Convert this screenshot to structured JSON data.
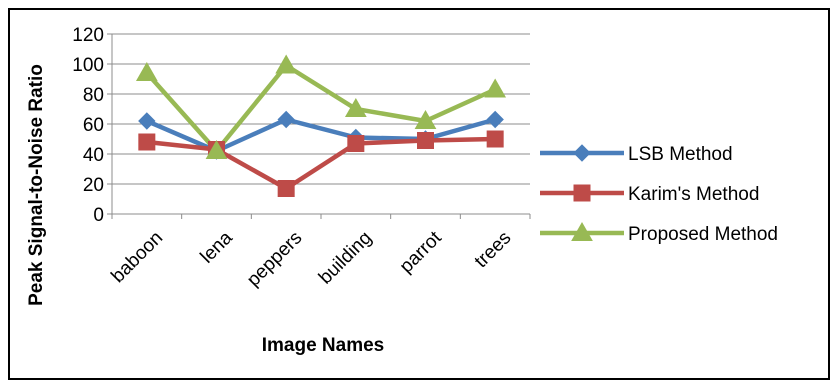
{
  "chart_data": {
    "type": "line",
    "categories": [
      "baboon",
      "lena",
      "peppers",
      "building",
      "parrot",
      "trees"
    ],
    "series": [
      {
        "name": "LSB Method",
        "values": [
          62,
          42,
          63,
          51,
          50,
          63
        ],
        "color": "#4a7ebb",
        "marker": "diamond"
      },
      {
        "name": "Karim's Method",
        "values": [
          48,
          43,
          17,
          47,
          49,
          50
        ],
        "color": "#be4b48",
        "marker": "square"
      },
      {
        "name": "Proposed Method",
        "values": [
          94,
          42,
          99,
          70,
          62,
          83
        ],
        "color": "#98b954",
        "marker": "triangle"
      }
    ],
    "title": "",
    "xlabel": "Image Names",
    "ylabel": "Peak Signal-to-Noise Ratio",
    "ylim": [
      0,
      120
    ],
    "yticks": [
      "0",
      "20",
      "40",
      "60",
      "80",
      "100",
      "120"
    ],
    "grid": true,
    "legend_position": "right"
  }
}
